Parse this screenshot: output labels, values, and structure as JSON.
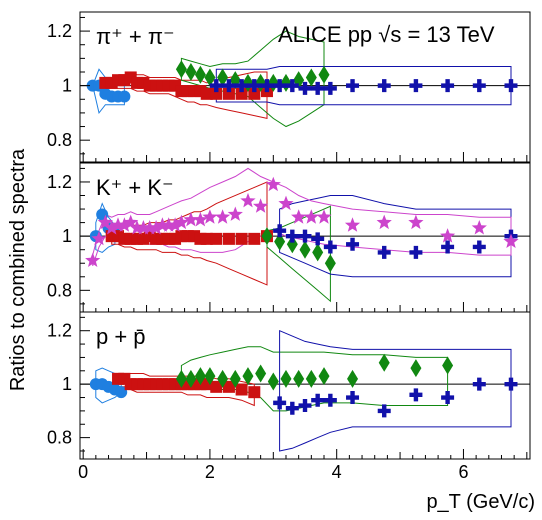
{
  "figure": {
    "experiment_label": "ALICE pp √s = 13 TeV",
    "x_axis_title": "p_T (GeV/c)",
    "y_axis_title": "Ratios to combined spectra",
    "x_ticks": [
      "0",
      "2",
      "4",
      "6"
    ],
    "y_ticks": [
      "0.8",
      "1",
      "1.2"
    ]
  },
  "colors": {
    "series_a": "#1f7fe0",
    "series_b": "#cc1111",
    "series_c": "#118811",
    "series_d": "#1111aa",
    "series_e": "#cc44cc",
    "reference_line": "#000000"
  },
  "chart_data": [
    {
      "type": "scatter",
      "panel_label": "π⁺ + π⁻",
      "xlim": [
        -0.05,
        7.05
      ],
      "ylim": [
        0.72,
        1.27
      ],
      "ylabel": "Ratios to combined spectra",
      "xlabel": "p_T (GeV/c)",
      "series": [
        {
          "color": "#1f7fe0",
          "marker": "circle",
          "x": [
            0.15,
            0.25,
            0.35,
            0.45,
            0.55,
            0.65
          ],
          "y": [
            1.0,
            1.0,
            0.97,
            0.96,
            0.96,
            0.96
          ],
          "band_upper": [
            1.0,
            1.06,
            1.03,
            1.02,
            1.02,
            1.02
          ],
          "band_lower": [
            1.0,
            0.9,
            0.93,
            0.93,
            0.93,
            0.93
          ]
        },
        {
          "color": "#cc1111",
          "marker": "square",
          "x": [
            0.35,
            0.45,
            0.55,
            0.65,
            0.75,
            0.85,
            0.95,
            1.05,
            1.15,
            1.25,
            1.35,
            1.45,
            1.55,
            1.65,
            1.75,
            1.85,
            1.95,
            2.1,
            2.3,
            2.5,
            2.7,
            2.9
          ],
          "y": [
            1.01,
            1.01,
            1.02,
            1.02,
            1.03,
            1.01,
            1.01,
            1.0,
            1.0,
            1.0,
            1.0,
            1.0,
            0.98,
            0.98,
            0.98,
            0.98,
            0.97,
            0.97,
            0.97,
            0.97,
            0.97,
            0.98
          ],
          "band_upper": [
            1.02,
            1.03,
            1.03,
            1.04,
            1.05,
            1.04,
            1.04,
            1.03,
            1.03,
            1.03,
            1.03,
            1.03,
            1.02,
            1.02,
            1.02,
            1.02,
            1.01,
            1.02,
            1.03,
            1.04,
            1.05,
            1.05
          ],
          "band_lower": [
            1.0,
            0.99,
            0.99,
            0.99,
            0.99,
            0.98,
            0.98,
            0.97,
            0.97,
            0.97,
            0.97,
            0.96,
            0.95,
            0.94,
            0.94,
            0.93,
            0.93,
            0.92,
            0.91,
            0.9,
            0.89,
            0.88
          ]
        },
        {
          "color": "#118811",
          "marker": "diamond",
          "x": [
            1.55,
            1.7,
            1.85,
            2.0,
            2.2,
            2.4,
            2.6,
            2.8,
            3.0,
            3.2,
            3.4,
            3.6,
            3.8
          ],
          "y": [
            1.06,
            1.05,
            1.04,
            1.03,
            1.03,
            1.02,
            1.01,
            1.01,
            1.01,
            1.01,
            1.02,
            1.03,
            1.04
          ],
          "band_upper": [
            1.1,
            1.09,
            1.08,
            1.07,
            1.08,
            1.08,
            1.09,
            1.13,
            1.17,
            1.2,
            1.18,
            1.17,
            1.16
          ],
          "band_lower": [
            1.02,
            1.01,
            1.0,
            0.99,
            0.98,
            0.97,
            0.96,
            0.92,
            0.88,
            0.85,
            0.87,
            0.9,
            0.93
          ]
        },
        {
          "color": "#1111aa",
          "marker": "cross",
          "x": [
            2.1,
            2.3,
            2.5,
            2.7,
            2.9,
            3.1,
            3.3,
            3.5,
            3.7,
            3.9,
            4.25,
            4.75,
            5.25,
            5.75,
            6.25,
            6.75
          ],
          "y": [
            1.0,
            1.0,
            1.0,
            1.0,
            1.0,
            1.0,
            1.0,
            0.99,
            0.99,
            0.99,
            1.0,
            1.0,
            1.0,
            1.0,
            1.0,
            1.0
          ],
          "band_upper": [
            1.06,
            1.06,
            1.06,
            1.06,
            1.06,
            1.07,
            1.07,
            1.07,
            1.07,
            1.07,
            1.07,
            1.07,
            1.07,
            1.07,
            1.07,
            1.07
          ],
          "band_lower": [
            0.94,
            0.94,
            0.94,
            0.94,
            0.94,
            0.93,
            0.93,
            0.93,
            0.93,
            0.93,
            0.93,
            0.93,
            0.93,
            0.93,
            0.93,
            0.93
          ]
        }
      ]
    },
    {
      "type": "scatter",
      "panel_label": "K⁺ + K⁻",
      "xlim": [
        -0.05,
        7.05
      ],
      "ylim": [
        0.72,
        1.27
      ],
      "series": [
        {
          "color": "#1f7fe0",
          "marker": "circle",
          "x": [
            0.2,
            0.3,
            0.4,
            0.5
          ],
          "y": [
            1.0,
            1.08,
            1.03,
            1.01
          ],
          "band_upper": [
            1.05,
            1.12,
            1.07,
            1.04
          ],
          "band_lower": [
            0.95,
            0.94,
            0.96,
            0.97
          ]
        },
        {
          "color": "#cc1111",
          "marker": "square",
          "x": [
            0.45,
            0.55,
            0.65,
            0.75,
            0.85,
            0.95,
            1.05,
            1.15,
            1.25,
            1.35,
            1.45,
            1.55,
            1.65,
            1.75,
            1.85,
            1.95,
            2.1,
            2.3,
            2.5,
            2.7,
            2.9
          ],
          "y": [
            1.0,
            1.0,
            0.99,
            0.99,
            0.99,
            0.99,
            1.0,
            0.99,
            0.99,
            0.99,
            0.99,
            1.0,
            1.0,
            1.0,
            0.99,
            0.99,
            0.99,
            0.99,
            0.99,
            0.99,
            1.0
          ],
          "band_upper": [
            1.03,
            1.03,
            1.03,
            1.04,
            1.04,
            1.04,
            1.05,
            1.05,
            1.05,
            1.06,
            1.06,
            1.07,
            1.08,
            1.09,
            1.09,
            1.1,
            1.12,
            1.14,
            1.16,
            1.18,
            1.2
          ],
          "band_lower": [
            0.97,
            0.97,
            0.96,
            0.96,
            0.95,
            0.95,
            0.95,
            0.95,
            0.94,
            0.94,
            0.94,
            0.93,
            0.93,
            0.92,
            0.92,
            0.91,
            0.9,
            0.88,
            0.86,
            0.84,
            0.82
          ]
        },
        {
          "color": "#118811",
          "marker": "diamond",
          "x": [
            2.9,
            3.1,
            3.3,
            3.5,
            3.7,
            3.9
          ],
          "y": [
            1.0,
            0.98,
            0.97,
            0.95,
            0.94,
            0.9
          ],
          "band_upper": [
            1.02,
            1.03,
            1.05,
            1.07,
            1.09,
            1.11
          ],
          "band_lower": [
            0.96,
            0.92,
            0.88,
            0.84,
            0.8,
            0.76
          ]
        },
        {
          "color": "#1111aa",
          "marker": "cross",
          "x": [
            3.1,
            3.3,
            3.5,
            3.7,
            3.9,
            4.25,
            4.75,
            5.25,
            5.75,
            6.25,
            6.75
          ],
          "y": [
            1.02,
            1.0,
            1.0,
            0.99,
            0.96,
            0.97,
            0.94,
            0.94,
            0.96,
            0.96,
            1.0
          ],
          "band_upper": [
            1.1,
            1.12,
            1.13,
            1.14,
            1.15,
            1.15,
            1.12,
            1.1,
            1.1,
            1.1,
            1.1
          ],
          "band_lower": [
            0.94,
            0.92,
            0.9,
            0.88,
            0.86,
            0.85,
            0.85,
            0.85,
            0.85,
            0.85,
            0.85
          ]
        },
        {
          "color": "#cc44cc",
          "marker": "star",
          "x": [
            0.15,
            0.25,
            0.35,
            0.45,
            0.55,
            0.65,
            0.75,
            0.85,
            0.95,
            1.05,
            1.15,
            1.25,
            1.35,
            1.45,
            1.55,
            1.7,
            1.85,
            2.0,
            2.2,
            2.4,
            2.6,
            2.8,
            3.0,
            3.2,
            3.4,
            3.6,
            3.8,
            4.25,
            4.75,
            5.25,
            5.75,
            6.25,
            6.75
          ],
          "y": [
            0.91,
            0.99,
            1.05,
            1.03,
            1.04,
            1.04,
            1.05,
            1.03,
            1.03,
            1.03,
            1.03,
            1.04,
            1.04,
            1.04,
            1.05,
            1.06,
            1.06,
            1.07,
            1.07,
            1.08,
            1.13,
            1.11,
            1.19,
            1.12,
            1.07,
            1.07,
            1.07,
            1.04,
            1.05,
            1.05,
            1.0,
            1.03,
            0.98
          ],
          "band_upper": [
            0.93,
            1.02,
            1.08,
            1.07,
            1.08,
            1.08,
            1.09,
            1.08,
            1.08,
            1.08,
            1.09,
            1.1,
            1.11,
            1.12,
            1.13,
            1.14,
            1.16,
            1.18,
            1.2,
            1.22,
            1.25,
            1.22,
            1.2,
            1.18,
            1.15,
            1.13,
            1.12,
            1.1,
            1.09,
            1.08,
            1.08,
            1.07,
            1.07
          ],
          "band_lower": [
            0.89,
            0.96,
            1.0,
            0.99,
            0.99,
            0.99,
            0.99,
            0.98,
            0.98,
            0.97,
            0.97,
            0.97,
            0.96,
            0.96,
            0.95,
            0.95,
            0.94,
            0.94,
            0.94,
            0.95,
            0.98,
            1.0,
            1.02,
            1.0,
            0.99,
            0.98,
            0.97,
            0.96,
            0.95,
            0.94,
            0.94,
            0.93,
            0.93
          ]
        }
      ]
    },
    {
      "type": "scatter",
      "panel_label": "p + p̄",
      "xlim": [
        -0.05,
        7.05
      ],
      "ylim": [
        0.72,
        1.27
      ],
      "series": [
        {
          "color": "#1f7fe0",
          "marker": "circle",
          "x": [
            0.2,
            0.3,
            0.4,
            0.5,
            0.6
          ],
          "y": [
            1.0,
            1.0,
            0.99,
            0.98,
            0.97
          ],
          "band_upper": [
            1.05,
            1.06,
            1.05,
            1.04,
            1.02
          ],
          "band_lower": [
            0.95,
            0.93,
            0.94,
            0.95,
            0.97
          ]
        },
        {
          "color": "#cc1111",
          "marker": "square",
          "x": [
            0.55,
            0.65,
            0.75,
            0.85,
            0.95,
            1.05,
            1.15,
            1.25,
            1.35,
            1.45,
            1.55,
            1.65,
            1.75,
            1.85,
            1.95,
            2.1,
            2.3,
            2.5,
            2.7
          ],
          "y": [
            1.02,
            1.02,
            1.0,
            1.0,
            1.0,
            1.0,
            1.0,
            1.0,
            1.0,
            1.0,
            1.0,
            1.0,
            1.0,
            1.0,
            1.0,
            0.99,
            0.99,
            0.98,
            0.97
          ],
          "band_upper": [
            1.03,
            1.04,
            1.04,
            1.04,
            1.04,
            1.03,
            1.03,
            1.03,
            1.03,
            1.03,
            1.03,
            1.03,
            1.03,
            1.03,
            1.03,
            1.02,
            1.02,
            1.01,
            1.0
          ],
          "band_lower": [
            0.99,
            0.99,
            0.98,
            0.97,
            0.97,
            0.97,
            0.97,
            0.97,
            0.97,
            0.97,
            0.97,
            0.96,
            0.96,
            0.96,
            0.95,
            0.95,
            0.95,
            0.94,
            0.92
          ]
        },
        {
          "color": "#118811",
          "marker": "diamond",
          "x": [
            1.55,
            1.7,
            1.85,
            2.0,
            2.2,
            2.4,
            2.6,
            2.8,
            3.0,
            3.2,
            3.4,
            3.6,
            3.8,
            4.25,
            4.75,
            5.25,
            5.75
          ],
          "y": [
            1.02,
            1.02,
            1.03,
            1.03,
            1.02,
            1.02,
            1.03,
            1.04,
            1.01,
            1.02,
            1.02,
            1.02,
            1.03,
            1.02,
            1.08,
            1.06,
            1.07
          ],
          "band_upper": [
            1.07,
            1.09,
            1.1,
            1.11,
            1.12,
            1.13,
            1.14,
            1.14,
            1.12,
            1.12,
            1.12,
            1.12,
            1.12,
            1.11,
            1.11,
            1.1,
            1.1
          ],
          "band_lower": [
            0.98,
            0.98,
            0.98,
            0.98,
            0.98,
            0.98,
            0.97,
            0.95,
            0.9,
            0.9,
            0.91,
            0.92,
            0.93,
            0.93,
            0.92,
            0.92,
            0.92
          ]
        },
        {
          "color": "#1111aa",
          "marker": "cross",
          "x": [
            3.1,
            3.3,
            3.5,
            3.7,
            3.9,
            4.25,
            4.75,
            5.25,
            5.75,
            6.25,
            6.75
          ],
          "y": [
            0.93,
            0.91,
            0.92,
            0.94,
            0.94,
            0.95,
            0.9,
            0.96,
            0.95,
            1.0,
            1.0
          ],
          "band_upper": [
            1.2,
            1.18,
            1.16,
            1.15,
            1.14,
            1.13,
            1.13,
            1.13,
            1.13,
            1.13,
            1.13
          ],
          "band_lower": [
            0.75,
            0.76,
            0.78,
            0.8,
            0.82,
            0.84,
            0.84,
            0.84,
            0.84,
            0.84,
            0.84
          ]
        }
      ]
    }
  ]
}
